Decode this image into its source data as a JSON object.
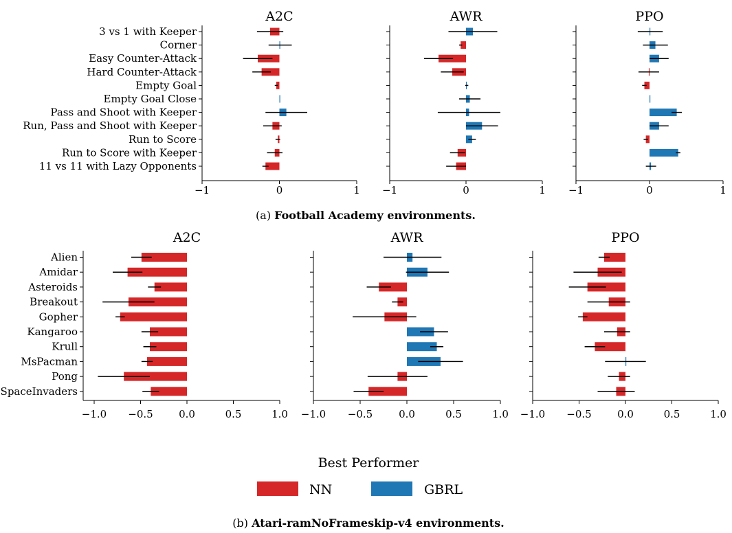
{
  "colors": {
    "NN": "#d62728",
    "GBRL": "#1f77b4",
    "error": "#000000"
  },
  "legend": {
    "title": "Best Performer",
    "items": [
      {
        "label": "NN",
        "color": "#d62728"
      },
      {
        "label": "GBRL",
        "color": "#1f77b4"
      }
    ]
  },
  "captions": {
    "a": {
      "prefix": "(a) ",
      "bold": "Football Academy environments."
    },
    "b": {
      "prefix": "(b) ",
      "bold": "Atari-ramNoFrameskip-v4 environments."
    }
  },
  "chart_data": [
    {
      "type": "bar",
      "orientation": "horizontal",
      "group": "a",
      "title": "A2C",
      "xlim": [
        -1,
        1
      ],
      "xticks": [
        "−1",
        "0",
        "1"
      ],
      "categories": [
        "3 vs 1 with Keeper",
        "Corner",
        "Easy Counter-Attack",
        "Hard Counter-Attack",
        "Empty Goal",
        "Empty Goal Close",
        "Pass and Shoot with Keeper",
        "Run, Pass and Shoot with Keeper",
        "Run to Score",
        "Run to Score with Keeper",
        "11 vs 11 with Lazy Opponents"
      ],
      "values": [
        -0.12,
        0.01,
        -0.28,
        -0.23,
        -0.04,
        0.01,
        0.09,
        -0.09,
        -0.02,
        -0.06,
        -0.18
      ],
      "errors": [
        0.17,
        0.15,
        0.19,
        0.12,
        0.02,
        0.0,
        0.27,
        0.12,
        0.03,
        0.1,
        0.04
      ],
      "best": [
        "NN",
        "GBRL",
        "NN",
        "NN",
        "NN",
        "GBRL",
        "GBRL",
        "NN",
        "NN",
        "NN",
        "NN"
      ]
    },
    {
      "type": "bar",
      "orientation": "horizontal",
      "group": "a",
      "title": "AWR",
      "xlim": [
        -1,
        1
      ],
      "xticks": [
        "−1",
        "0",
        "1"
      ],
      "categories": [
        "3 vs 1 with Keeper",
        "Corner",
        "Easy Counter-Attack",
        "Hard Counter-Attack",
        "Empty Goal",
        "Empty Goal Close",
        "Pass and Shoot with Keeper",
        "Run, Pass and Shoot with Keeper",
        "Run to Score",
        "Run to Score with Keeper",
        "11 vs 11 with Lazy Opponents"
      ],
      "values": [
        0.09,
        -0.07,
        -0.36,
        -0.18,
        0.01,
        0.05,
        0.04,
        0.21,
        0.08,
        -0.11,
        -0.13
      ],
      "errors": [
        0.32,
        0.02,
        0.19,
        0.15,
        0.02,
        0.14,
        0.41,
        0.21,
        0.05,
        0.1,
        0.13
      ],
      "best": [
        "GBRL",
        "NN",
        "NN",
        "NN",
        "GBRL",
        "GBRL",
        "GBRL",
        "GBRL",
        "GBRL",
        "NN",
        "NN"
      ]
    },
    {
      "type": "bar",
      "orientation": "horizontal",
      "group": "a",
      "title": "PPO",
      "xlim": [
        -1,
        1
      ],
      "xticks": [
        "−1",
        "0",
        "1"
      ],
      "categories": [
        "3 vs 1 with Keeper",
        "Corner",
        "Easy Counter-Attack",
        "Hard Counter-Attack",
        "Empty Goal",
        "Empty Goal Close",
        "Pass and Shoot with Keeper",
        "Run, Pass and Shoot with Keeper",
        "Run to Score",
        "Run to Score with Keeper",
        "11 vs 11 with Lazy Opponents"
      ],
      "values": [
        0.01,
        0.08,
        0.13,
        -0.01,
        -0.07,
        0.0,
        0.37,
        0.13,
        -0.05,
        0.39,
        0.02
      ],
      "errors": [
        0.17,
        0.17,
        0.13,
        0.14,
        0.03,
        0.0,
        0.07,
        0.13,
        0.03,
        0.03,
        0.07
      ],
      "best": [
        "GBRL",
        "GBRL",
        "GBRL",
        "NN",
        "NN",
        "GBRL",
        "GBRL",
        "GBRL",
        "NN",
        "GBRL",
        "GBRL"
      ]
    },
    {
      "type": "bar",
      "orientation": "horizontal",
      "group": "b",
      "title": "A2C",
      "xlim": [
        -1,
        1
      ],
      "xticks": [
        "−1.0",
        "−0.5",
        "0.0",
        "0.5",
        "1.0"
      ],
      "categories": [
        "Alien",
        "Amidar",
        "Asteroids",
        "Breakout",
        "Gopher",
        "Kangaroo",
        "Krull",
        "MsPacman",
        "Pong",
        "SpaceInvaders"
      ],
      "values": [
        -0.49,
        -0.64,
        -0.35,
        -0.63,
        -0.72,
        -0.4,
        -0.4,
        -0.43,
        -0.68,
        -0.39
      ],
      "errors": [
        0.11,
        0.16,
        0.07,
        0.28,
        0.05,
        0.09,
        0.07,
        0.06,
        0.28,
        0.09
      ],
      "best": [
        "NN",
        "NN",
        "NN",
        "NN",
        "NN",
        "NN",
        "NN",
        "NN",
        "NN",
        "NN"
      ]
    },
    {
      "type": "bar",
      "orientation": "horizontal",
      "group": "b",
      "title": "AWR",
      "xlim": [
        -1,
        1
      ],
      "xticks": [
        "−1.0",
        "−0.5",
        "0.0",
        "0.5",
        "1.0"
      ],
      "categories": [
        "Alien",
        "Amidar",
        "Asteroids",
        "Breakout",
        "Gopher",
        "Kangaroo",
        "Krull",
        "MsPacman",
        "Pong",
        "SpaceInvaders"
      ],
      "values": [
        0.06,
        0.22,
        -0.3,
        -0.1,
        -0.24,
        0.29,
        0.32,
        0.36,
        -0.1,
        -0.41
      ],
      "errors": [
        0.31,
        0.23,
        0.13,
        0.06,
        0.34,
        0.15,
        0.07,
        0.24,
        0.32,
        0.16
      ],
      "best": [
        "GBRL",
        "GBRL",
        "NN",
        "NN",
        "NN",
        "GBRL",
        "GBRL",
        "GBRL",
        "NN",
        "NN"
      ]
    },
    {
      "type": "bar",
      "orientation": "horizontal",
      "group": "b",
      "title": "PPO",
      "xlim": [
        -1,
        1
      ],
      "xticks": [
        "−1.0",
        "−0.5",
        "0.0",
        "0.5",
        "1.0"
      ],
      "categories": [
        "Alien",
        "Amidar",
        "Asteroids",
        "Breakout",
        "Gopher",
        "Kangaroo",
        "Krull",
        "MsPacman",
        "Pong",
        "SpaceInvaders"
      ],
      "values": [
        -0.23,
        -0.3,
        -0.41,
        -0.18,
        -0.46,
        -0.09,
        -0.33,
        0.0,
        -0.07,
        -0.1
      ],
      "errors": [
        0.06,
        0.26,
        0.2,
        0.23,
        0.05,
        0.14,
        0.11,
        0.22,
        0.12,
        0.2
      ],
      "best": [
        "NN",
        "NN",
        "NN",
        "NN",
        "NN",
        "NN",
        "NN",
        "GBRL",
        "NN",
        "NN"
      ]
    }
  ]
}
